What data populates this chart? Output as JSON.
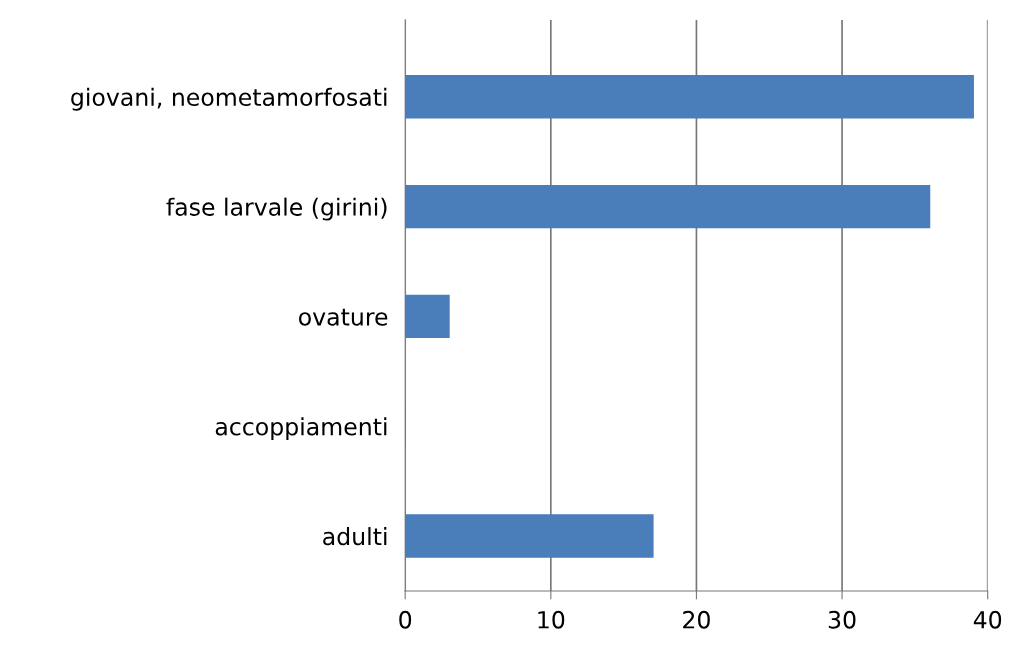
{
  "chart_data": {
    "type": "bar",
    "orientation": "horizontal",
    "categories": [
      "giovani, neometamorfosati",
      "fase larvale (girini)",
      "ovature",
      "accoppiamenti",
      "adulti"
    ],
    "values": [
      39,
      36,
      3,
      0,
      17
    ],
    "color": "#4a7ebb",
    "xlim": [
      0,
      40
    ],
    "xticks": [
      0,
      10,
      20,
      30,
      40
    ],
    "grid": "x"
  }
}
